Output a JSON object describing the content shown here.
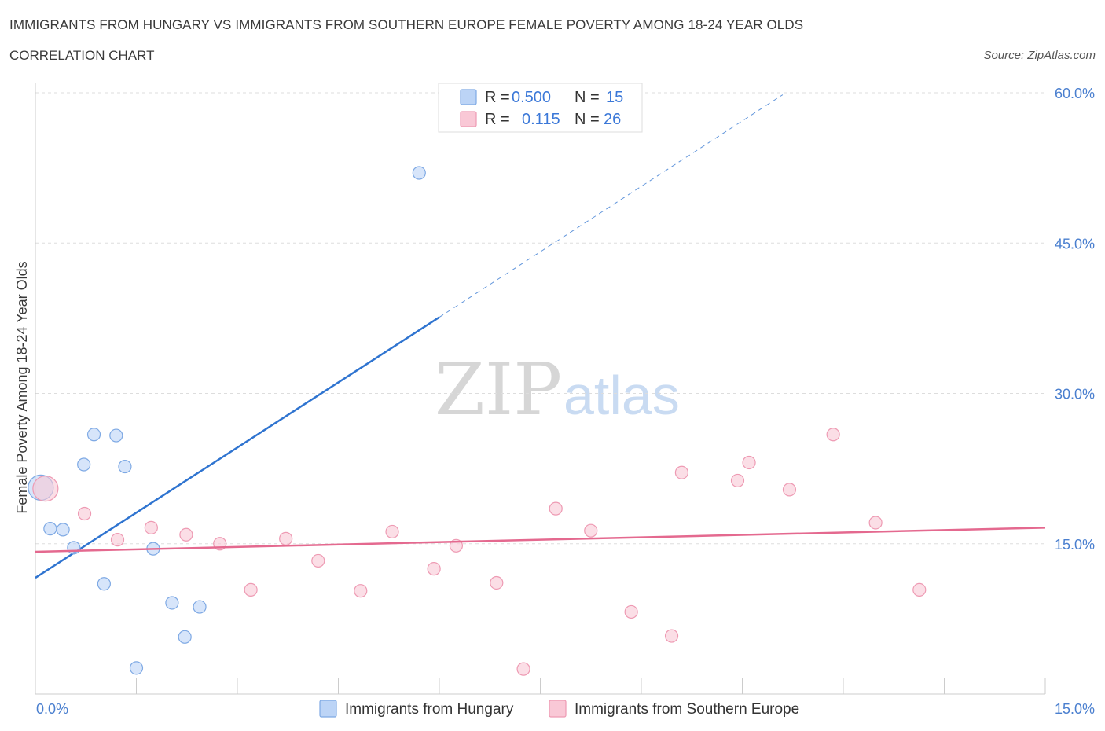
{
  "title": "IMMIGRANTS FROM HUNGARY VS IMMIGRANTS FROM SOUTHERN EUROPE FEMALE POVERTY AMONG 18-24 YEAR OLDS",
  "subtitle": "CORRELATION CHART",
  "source": "Source: ZipAtlas.com",
  "watermark": {
    "zip": "ZIP",
    "atlas": "atlas"
  },
  "colors": {
    "hungary_fill": "#bcd4f6",
    "hungary_stroke": "#7ea9e4",
    "hungary_line": "#2f74d0",
    "southern_fill": "#f9c8d6",
    "southern_stroke": "#ee9ab3",
    "southern_line": "#e4698f",
    "tick": "#4a7fcf",
    "grid": "#dddddd"
  },
  "legend": {
    "r_label": "R =",
    "n_label": "N =",
    "rows": [
      {
        "series": "hungary",
        "r": "0.500",
        "n": "15"
      },
      {
        "series": "southern",
        "r": "0.115",
        "n": "26"
      }
    ]
  },
  "chart_data": {
    "type": "scatter",
    "title": "IMMIGRANTS FROM HUNGARY VS IMMIGRANTS FROM SOUTHERN EUROPE FEMALE POVERTY AMONG 18-24 YEAR OLDS",
    "xlabel": "",
    "ylabel": "Female Poverty Among 18-24 Year Olds",
    "xlim": [
      0,
      15
    ],
    "ylim": [
      0,
      60
    ],
    "x_tick_labels": [
      "0.0%",
      "15.0%"
    ],
    "y_ticks": [
      15,
      30,
      45,
      60
    ],
    "y_tick_labels": [
      "15.0%",
      "30.0%",
      "45.0%",
      "60.0%"
    ],
    "grid": true,
    "series": [
      {
        "name": "Immigrants from Hungary",
        "key": "hungary",
        "points": [
          {
            "x": 0.08,
            "y": 20.6,
            "big": true
          },
          {
            "x": 0.22,
            "y": 16.5
          },
          {
            "x": 0.41,
            "y": 16.4
          },
          {
            "x": 0.57,
            "y": 14.6
          },
          {
            "x": 0.72,
            "y": 22.9
          },
          {
            "x": 0.87,
            "y": 25.9
          },
          {
            "x": 1.02,
            "y": 11.0
          },
          {
            "x": 1.2,
            "y": 25.8
          },
          {
            "x": 1.33,
            "y": 22.7
          },
          {
            "x": 1.5,
            "y": 2.6
          },
          {
            "x": 1.75,
            "y": 14.5
          },
          {
            "x": 2.03,
            "y": 9.1
          },
          {
            "x": 2.22,
            "y": 5.7
          },
          {
            "x": 2.44,
            "y": 8.7
          },
          {
            "x": 5.7,
            "y": 52.0
          }
        ],
        "trend": {
          "x0": 0.0,
          "y0": 11.6,
          "x1": 6.0,
          "y1": 37.6,
          "x_end": 11.1,
          "y_end": 59.8
        }
      },
      {
        "name": "Immigrants from Southern Europe",
        "key": "southern",
        "points": [
          {
            "x": 0.15,
            "y": 20.5,
            "big": true
          },
          {
            "x": 0.73,
            "y": 18.0
          },
          {
            "x": 1.22,
            "y": 15.4
          },
          {
            "x": 1.72,
            "y": 16.6
          },
          {
            "x": 2.24,
            "y": 15.9
          },
          {
            "x": 2.74,
            "y": 15.0
          },
          {
            "x": 3.2,
            "y": 10.4
          },
          {
            "x": 3.72,
            "y": 15.5
          },
          {
            "x": 4.2,
            "y": 13.3
          },
          {
            "x": 4.83,
            "y": 10.3
          },
          {
            "x": 5.3,
            "y": 16.2
          },
          {
            "x": 5.92,
            "y": 12.5
          },
          {
            "x": 6.25,
            "y": 14.8
          },
          {
            "x": 6.85,
            "y": 11.1
          },
          {
            "x": 7.25,
            "y": 2.5
          },
          {
            "x": 7.73,
            "y": 18.5
          },
          {
            "x": 8.25,
            "y": 16.3
          },
          {
            "x": 8.85,
            "y": 8.2
          },
          {
            "x": 9.45,
            "y": 5.8
          },
          {
            "x": 9.6,
            "y": 22.1
          },
          {
            "x": 10.43,
            "y": 21.3
          },
          {
            "x": 10.6,
            "y": 23.1
          },
          {
            "x": 11.2,
            "y": 20.4
          },
          {
            "x": 11.85,
            "y": 25.9
          },
          {
            "x": 12.48,
            "y": 17.1
          },
          {
            "x": 13.13,
            "y": 10.4
          }
        ],
        "trend": {
          "x0": 0.0,
          "y0": 14.2,
          "x1": 15.0,
          "y1": 16.6
        }
      }
    ]
  }
}
